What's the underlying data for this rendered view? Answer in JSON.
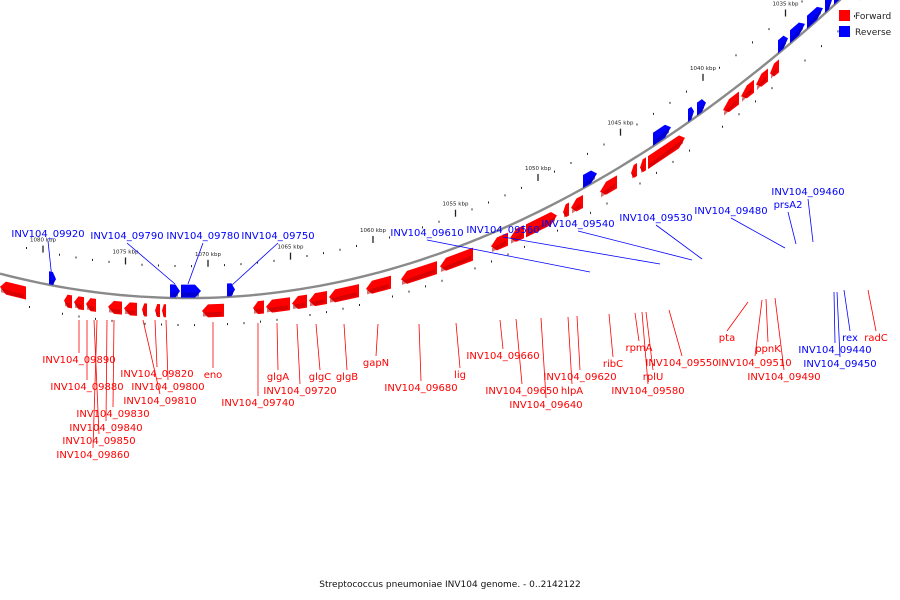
{
  "legend": {
    "forward_label": "Forward",
    "reverse_label": "Reverse",
    "forward_color": "#ff0000",
    "reverse_color": "#0000ff"
  },
  "caption": "Streptococcus pneumoniae INV104 genome. - 0..2142122",
  "colors": {
    "forward": "#ff0000",
    "forward_shade": "#b80000",
    "reverse": "#0000ff",
    "reverse_shade": "#0000a8",
    "backbone": "#8a8a8a",
    "tick": "#222222"
  },
  "chart_data": {
    "type": "genome-map",
    "ticks": [
      {
        "label": "1080 kbp",
        "pos": 1080
      },
      {
        "label": "1075 kbp",
        "pos": 1075
      },
      {
        "label": "1070 kbp",
        "pos": 1070
      },
      {
        "label": "1065 kbp",
        "pos": 1065
      },
      {
        "label": "1060 kbp",
        "pos": 1060
      },
      {
        "label": "1055 kbp",
        "pos": 1055
      },
      {
        "label": "1050 kbp",
        "pos": 1050
      },
      {
        "label": "1045 kbp",
        "pos": 1045
      },
      {
        "label": "1040 kbp",
        "pos": 1040
      },
      {
        "label": "1035 kbp",
        "pos": 1035
      },
      {
        "label": "1030 kbp",
        "pos": 1030
      }
    ],
    "reverse_labels": [
      {
        "label": "INV104_09920",
        "pos": 1080.1
      },
      {
        "label": "INV104_09790",
        "pos": 1073.3
      },
      {
        "label": "INV104_09780",
        "pos": 1072.5
      },
      {
        "label": "INV104_09750",
        "pos": 1069.8
      },
      {
        "label": "INV104_09610",
        "pos": 1048.1
      },
      {
        "label": "INV104_09560",
        "pos": 1044.3
      },
      {
        "label": "INV104_09540",
        "pos": 1042.2
      },
      {
        "label": "INV104_09530",
        "pos": 1040.7
      },
      {
        "label": "INV104_09480",
        "pos": 1035.8
      },
      {
        "label": "prsA2",
        "pos": 1035.0
      },
      {
        "label": "INV104_09460",
        "pos": 1034.1
      }
    ],
    "forward_labels": [
      {
        "label": "INV104_09890",
        "pos": 1078.2
      },
      {
        "label": "INV104_09880",
        "pos": 1077.8
      },
      {
        "label": "INV104_09860",
        "pos": 1077.3
      },
      {
        "label": "INV104_09850",
        "pos": 1076.8
      },
      {
        "label": "INV104_09840",
        "pos": 1076.1
      },
      {
        "label": "INV104_09830",
        "pos": 1075.6
      },
      {
        "label": "INV104_09820",
        "pos": 1074.9
      },
      {
        "label": "INV104_09810",
        "pos": 1074.5
      },
      {
        "label": "INV104_09800",
        "pos": 1074.1
      },
      {
        "label": "eno",
        "pos": 1070.9
      },
      {
        "label": "INV104_09740",
        "pos": 1068.1
      },
      {
        "label": "glgA",
        "pos": 1067.4
      },
      {
        "label": "INV104_09720",
        "pos": 1066.1
      },
      {
        "label": "glgC",
        "pos": 1064.8
      },
      {
        "label": "glgB",
        "pos": 1063.5
      },
      {
        "label": "gapN",
        "pos": 1060.5
      },
      {
        "label": "INV104_09680",
        "pos": 1057.6
      },
      {
        "label": "lig",
        "pos": 1055.4
      },
      {
        "label": "INV104_09660",
        "pos": 1052.6
      },
      {
        "label": "INV104_09650",
        "pos": 1051.8
      },
      {
        "label": "INV104_09640",
        "pos": 1050.3
      },
      {
        "label": "hlpA",
        "pos": 1049.3
      },
      {
        "label": "INV104_09620",
        "pos": 1048.7
      },
      {
        "label": "ribC",
        "pos": 1046.9
      },
      {
        "label": "rpmA",
        "pos": 1045.7
      },
      {
        "label": "rplU",
        "pos": 1045.3
      },
      {
        "label": "INV104_09580",
        "pos": 1044.9
      },
      {
        "label": "INV104_09550",
        "pos": 1043.7
      },
      {
        "label": "pta",
        "pos": 1038.8
      },
      {
        "label": "INV104_09510",
        "pos": 1037.8
      },
      {
        "label": "ppnK",
        "pos": 1037.0
      },
      {
        "label": "INV104_09490",
        "pos": 1036.6
      },
      {
        "label": "rex",
        "pos": 1032.7
      },
      {
        "label": "INV104_09440",
        "pos": 1032.4
      },
      {
        "label": "INV104_09450",
        "pos": 1032.2
      },
      {
        "label": "radC",
        "pos": 1031.5
      }
    ]
  }
}
